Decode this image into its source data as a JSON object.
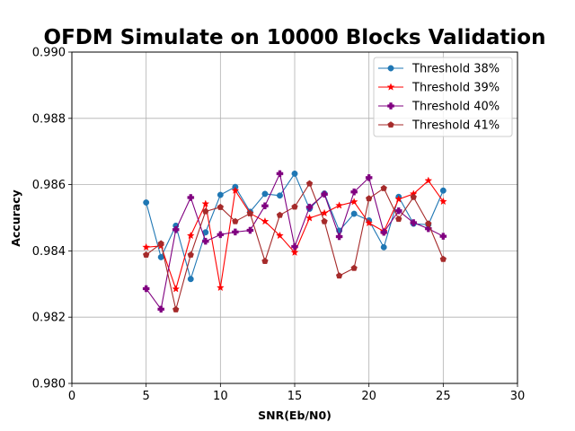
{
  "chart_data": {
    "type": "line",
    "title": "OFDM Simulate on 10000 Blocks Validation",
    "xlabel": "SNR(Eb/N0)",
    "ylabel": "Accuracy",
    "xlim": [
      0,
      30
    ],
    "ylim": [
      0.98,
      0.99
    ],
    "xticks": [
      0,
      5,
      10,
      15,
      20,
      25,
      30
    ],
    "yticks": [
      0.98,
      0.982,
      0.984,
      0.986,
      0.988,
      0.99
    ],
    "xtick_labels": [
      "0",
      "5",
      "10",
      "15",
      "20",
      "25",
      "30"
    ],
    "ytick_labels": [
      "0.980",
      "0.982",
      "0.984",
      "0.986",
      "0.988",
      "0.990"
    ],
    "grid": true,
    "legend_position": "top-right",
    "x": [
      5,
      6,
      7,
      8,
      9,
      10,
      11,
      12,
      13,
      14,
      15,
      16,
      17,
      18,
      19,
      20,
      21,
      22,
      23,
      24,
      25
    ],
    "series": [
      {
        "name": "Threshold 38%",
        "color": "#1f77b4",
        "marker": "circle",
        "values": [
          0.98546,
          0.98381,
          0.98476,
          0.98315,
          0.98456,
          0.98569,
          0.98593,
          0.98518,
          0.98572,
          0.98567,
          0.98633,
          0.98527,
          0.98573,
          0.98461,
          0.98512,
          0.98492,
          0.98411,
          0.98563,
          0.98482,
          0.98479,
          0.98582
        ]
      },
      {
        "name": "Threshold 39%",
        "color": "#ff0000",
        "marker": "star",
        "values": [
          0.98411,
          0.98415,
          0.98285,
          0.98446,
          0.98542,
          0.98289,
          0.98582,
          0.98513,
          0.98489,
          0.98446,
          0.98395,
          0.98499,
          0.98514,
          0.98537,
          0.98548,
          0.98484,
          0.98459,
          0.98556,
          0.98572,
          0.98612,
          0.98549
        ]
      },
      {
        "name": "Threshold 40%",
        "color": "#800080",
        "marker": "plus",
        "values": [
          0.98286,
          0.98224,
          0.98464,
          0.98561,
          0.98429,
          0.98449,
          0.98457,
          0.98462,
          0.98536,
          0.98633,
          0.98413,
          0.98532,
          0.98571,
          0.98443,
          0.98578,
          0.98621,
          0.98456,
          0.98521,
          0.98485,
          0.98467,
          0.98444
        ]
      },
      {
        "name": "Threshold 41%",
        "color": "#a52a2a",
        "marker": "pentagon",
        "values": [
          0.98388,
          0.98422,
          0.98223,
          0.98388,
          0.98519,
          0.98532,
          0.98489,
          0.98513,
          0.98369,
          0.98508,
          0.98533,
          0.98603,
          0.98489,
          0.98325,
          0.98348,
          0.98558,
          0.98589,
          0.98496,
          0.98562,
          0.98482,
          0.98375
        ]
      }
    ]
  }
}
